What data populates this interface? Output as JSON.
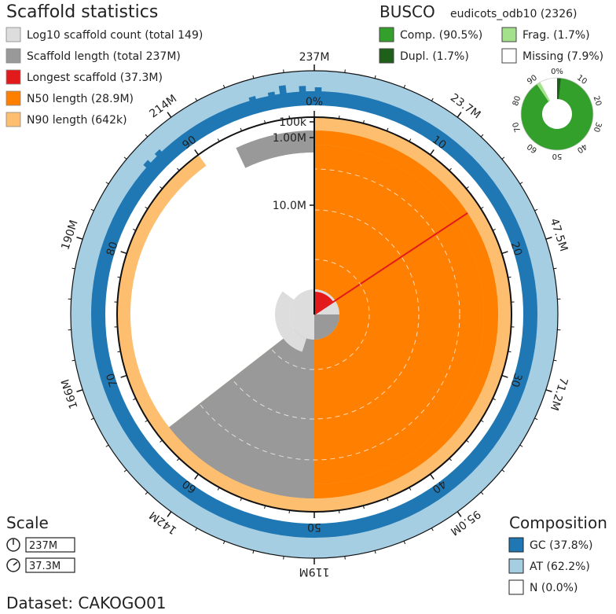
{
  "chart_data": {
    "type": "snail",
    "scaffold_panel": {
      "title": "Scaffold statistics",
      "legend": [
        {
          "label": "Log10 scaffold count (total 149)",
          "color": "#dddddd"
        },
        {
          "label": "Scaffold length (total 237M)",
          "color": "#999999"
        },
        {
          "label": "Longest scaffold (37.3M)",
          "color": "#e31a1c"
        },
        {
          "label": "N50 length (28.9M)",
          "color": "#ff7f00"
        },
        {
          "label": "N90 length (642k)",
          "color": "#fdbf6f"
        }
      ]
    },
    "busco": {
      "title": "BUSCO",
      "lineage": "eudicots_odb10 (2326)",
      "legend": [
        {
          "label": "Comp. (90.5%)",
          "color": "#33a02c"
        },
        {
          "label": "Frag. (1.7%)",
          "color": "#a3e28a"
        },
        {
          "label": "Dupl. (1.7%)",
          "color": "#1e5f1a"
        },
        {
          "label": "Missing (7.9%)",
          "color": "#ffffff"
        }
      ],
      "complete_pct": 90.5,
      "duplicated_pct": 1.7,
      "fragmented_pct": 1.7,
      "missing_pct": 7.9,
      "ticks": [
        "0%",
        "10",
        "20",
        "30",
        "40",
        "50",
        "60",
        "70",
        "80",
        "90"
      ]
    },
    "composition": {
      "title": "Composition",
      "legend": [
        {
          "label": "GC (37.8%)",
          "color": "#1f78b4"
        },
        {
          "label": "AT (62.2%)",
          "color": "#a6cee3"
        },
        {
          "label": "N (0.0%)",
          "color": "#ffffff"
        }
      ],
      "gc_pct": 37.8,
      "at_pct": 62.2,
      "n_pct": 0.0
    },
    "scale": {
      "title": "Scale",
      "items": [
        "237M",
        "37.3M"
      ]
    },
    "dataset_label": "Dataset: CAKOGO01",
    "stats": {
      "total_length_m": 237,
      "scaffold_count": 149,
      "longest_scaffold_m": 37.3,
      "n50_m": 28.9,
      "n90_m": 0.642,
      "longest_pct": 15.7,
      "n50_pct": 50,
      "n90_pct": 90,
      "scaffold_coverage_pct": 64.5
    },
    "outer_axis_labels": [
      {
        "label": "237M",
        "pct": 0
      },
      {
        "label": "23.7M",
        "pct": 10
      },
      {
        "label": "47.5M",
        "pct": 20
      },
      {
        "label": "71.2M",
        "pct": 30
      },
      {
        "label": "95.0M",
        "pct": 40
      },
      {
        "label": "119M",
        "pct": 50
      },
      {
        "label": "142M",
        "pct": 60
      },
      {
        "label": "166M",
        "pct": 70
      },
      {
        "label": "190M",
        "pct": 80
      },
      {
        "label": "214M",
        "pct": 90
      }
    ],
    "inner_axis_labels": [
      "0%",
      "10",
      "20",
      "30",
      "40",
      "50",
      "60",
      "70",
      "80",
      "90"
    ],
    "radial_labels": [
      "100k",
      "1.00M",
      "10.0M"
    ]
  }
}
